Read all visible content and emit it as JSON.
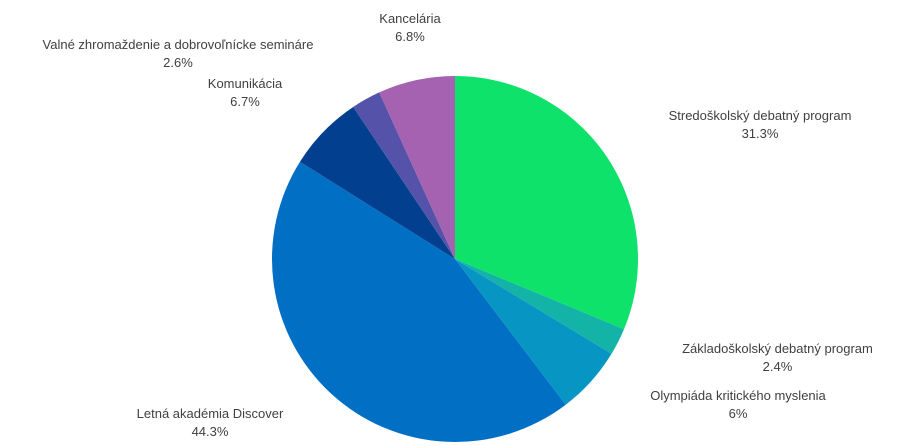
{
  "chart_data": {
    "type": "pie",
    "title": "",
    "start_angle_deg": 0,
    "direction": "clockwise",
    "slices": [
      {
        "label": "Stredoškolský debatný program",
        "value_label": "31.3%",
        "value": 31.3,
        "color": "#0EE26B"
      },
      {
        "label": "Základoškolský debatný program",
        "value_label": "2.4%",
        "value": 2.4,
        "color": "#14B3A7"
      },
      {
        "label": "Olympiáda kritického myslenia",
        "value_label": "6%",
        "value": 6.0,
        "color": "#0796C4"
      },
      {
        "label": "Letná akadémia Discover",
        "value_label": "44.3%",
        "value": 44.3,
        "color": "#016FC4"
      },
      {
        "label": "Komunikácia",
        "value_label": "6.7%",
        "value": 6.7,
        "color": "#023F8E"
      },
      {
        "label": "Valné zhromaždenie a dobrovoľnícke semináre",
        "value_label": "2.6%",
        "value": 2.6,
        "color": "#5552A9"
      },
      {
        "label": "Kancelária",
        "value_label": "6.8%",
        "value": 6.8,
        "color": "#A462B1"
      }
    ]
  }
}
